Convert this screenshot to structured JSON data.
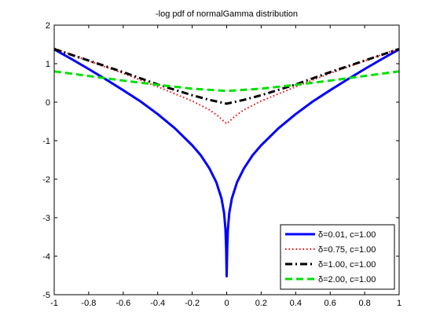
{
  "chart_data": {
    "type": "line",
    "title": "-log pdf of normalGamma distribution",
    "xlabel": "",
    "ylabel": "",
    "xlim": [
      -1,
      1
    ],
    "ylim": [
      -5,
      2
    ],
    "xticks": [
      -1,
      -0.8,
      -0.6,
      -0.4,
      -0.2,
      0,
      0.2,
      0.4,
      0.6,
      0.8,
      1
    ],
    "xtick_labels": [
      "-1",
      "-0.8",
      "-0.6",
      "-0.4",
      "-0.2",
      "0",
      "0.2",
      "0.4",
      "0.6",
      "0.8",
      "1"
    ],
    "yticks": [
      -5,
      -4,
      -3,
      -2,
      -1,
      0,
      1,
      2
    ],
    "ytick_labels": [
      "-5",
      "-4",
      "-3",
      "-2",
      "-1",
      "0",
      "1",
      "2"
    ],
    "grid": false,
    "legend_position": "bottom-right",
    "series": [
      {
        "name": "δ=0.01, c=1.00",
        "color": "#0000ff",
        "style": "solid",
        "x": [
          -1,
          -0.9,
          -0.8,
          -0.7,
          -0.6,
          -0.5,
          -0.4,
          -0.3,
          -0.2,
          -0.15,
          -0.1,
          -0.06,
          -0.03,
          -0.015,
          -0.007,
          -0.003,
          0,
          0.003,
          0.007,
          0.015,
          0.03,
          0.06,
          0.1,
          0.15,
          0.2,
          0.3,
          0.4,
          0.5,
          0.6,
          0.7,
          0.8,
          0.9,
          1
        ],
        "y": [
          1.37,
          1.12,
          0.86,
          0.59,
          0.31,
          0.02,
          -0.31,
          -0.68,
          -1.12,
          -1.38,
          -1.72,
          -2.08,
          -2.5,
          -2.88,
          -3.3,
          -3.8,
          -4.52,
          -3.8,
          -3.3,
          -2.88,
          -2.5,
          -2.08,
          -1.72,
          -1.38,
          -1.12,
          -0.68,
          -0.31,
          0.02,
          0.31,
          0.59,
          0.86,
          1.12,
          1.37
        ]
      },
      {
        "name": "δ=0.75, c=1.00",
        "color": "#ff0000",
        "style": "dotted",
        "x": [
          -1,
          -0.8,
          -0.6,
          -0.4,
          -0.2,
          -0.1,
          -0.05,
          0,
          0.05,
          0.1,
          0.2,
          0.4,
          0.6,
          0.8,
          1
        ],
        "y": [
          1.4,
          1.07,
          0.75,
          0.4,
          0.03,
          -0.2,
          -0.36,
          -0.56,
          -0.36,
          -0.2,
          0.03,
          0.4,
          0.75,
          1.07,
          1.4
        ]
      },
      {
        "name": "δ=1.00, c=1.00",
        "color": "#000000",
        "style": "dash-dot",
        "x": [
          -1,
          -0.8,
          -0.6,
          -0.4,
          -0.2,
          -0.1,
          0,
          0.1,
          0.2,
          0.4,
          0.6,
          0.8,
          1
        ],
        "y": [
          1.38,
          1.08,
          0.78,
          0.46,
          0.18,
          0.06,
          -0.04,
          0.06,
          0.18,
          0.46,
          0.78,
          1.08,
          1.38
        ]
      },
      {
        "name": "δ=2.00, c=1.00",
        "color": "#00e000",
        "style": "dashed",
        "x": [
          -1,
          -0.8,
          -0.6,
          -0.4,
          -0.2,
          0,
          0.2,
          0.4,
          0.6,
          0.8,
          1
        ],
        "y": [
          0.8,
          0.68,
          0.56,
          0.45,
          0.35,
          0.29,
          0.35,
          0.45,
          0.56,
          0.68,
          0.8
        ]
      }
    ]
  }
}
